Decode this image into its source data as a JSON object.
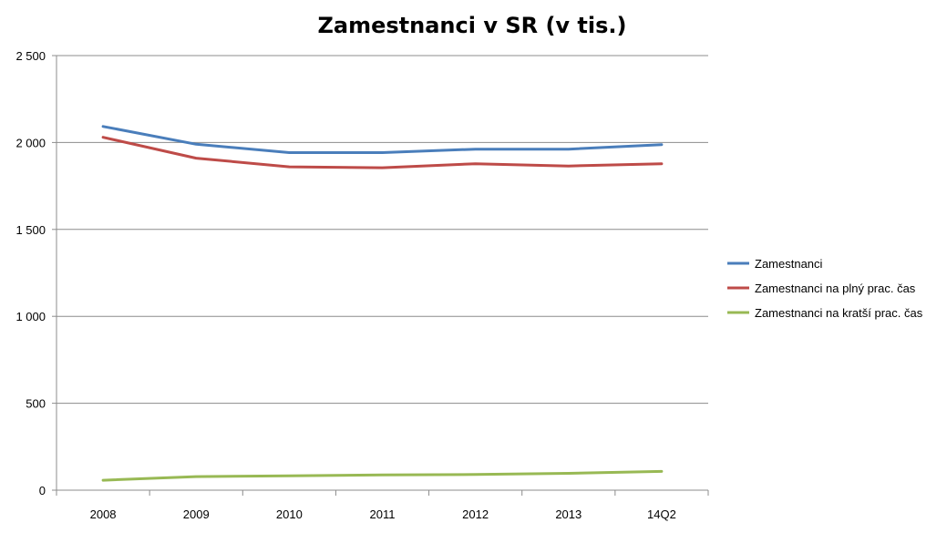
{
  "chart_data": {
    "type": "line",
    "title": "Zamestnanci v SR (v tis.)",
    "xlabel": "",
    "ylabel": "",
    "categories": [
      "2008",
      "2009",
      "2010",
      "2011",
      "2012",
      "2013",
      "14Q2"
    ],
    "ylim": [
      0,
      2500
    ],
    "yticks": [
      0,
      500,
      1000,
      1500,
      2000,
      2500
    ],
    "ytick_labels": [
      "0",
      "500",
      "1 000",
      "1 500",
      "2 000",
      "2 500"
    ],
    "grid": true,
    "legend_position": "right",
    "series": [
      {
        "name": "Zamestnanci",
        "color": "#4a7ebb",
        "values": [
          2092,
          1990,
          1942,
          1942,
          1962,
          1962,
          1988
        ]
      },
      {
        "name": "Zamestnanci na plný prac. čas",
        "color": "#be4b48",
        "values": [
          2030,
          1910,
          1860,
          1855,
          1878,
          1865,
          1878
        ]
      },
      {
        "name": "Zamestnanci na kratší prac. čas",
        "color": "#98b954",
        "values": [
          57,
          78,
          83,
          88,
          90,
          97,
          108
        ]
      }
    ]
  }
}
